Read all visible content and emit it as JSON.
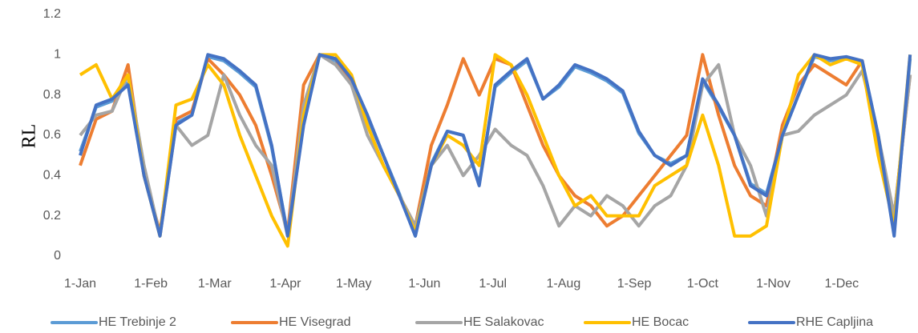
{
  "chart_data": {
    "type": "line",
    "y_label": "RL",
    "x": [
      0,
      7,
      14,
      21,
      28,
      35,
      42,
      49,
      56,
      63,
      70,
      77,
      84,
      91,
      98,
      105,
      112,
      119,
      126,
      133,
      140,
      147,
      154,
      161,
      168,
      175,
      182,
      189,
      196,
      203,
      210,
      217,
      224,
      231,
      238,
      245,
      252,
      259,
      266,
      273,
      280,
      287,
      294,
      301,
      308,
      315,
      322,
      329,
      336,
      343,
      350,
      357,
      364
    ],
    "xlim": [
      0,
      365
    ],
    "xticks": [
      {
        "value": 0,
        "label": "1-Jan"
      },
      {
        "value": 31,
        "label": "1-Feb"
      },
      {
        "value": 59,
        "label": "1-Mar"
      },
      {
        "value": 90,
        "label": "1-Apr"
      },
      {
        "value": 120,
        "label": "1-May"
      },
      {
        "value": 151,
        "label": "1-Jun"
      },
      {
        "value": 181,
        "label": "1-Jul"
      },
      {
        "value": 212,
        "label": "1-Aug"
      },
      {
        "value": 243,
        "label": "1-Sep"
      },
      {
        "value": 273,
        "label": "1-Oct"
      },
      {
        "value": 304,
        "label": "1-Nov"
      },
      {
        "value": 334,
        "label": "1-Dec"
      }
    ],
    "ylim": [
      0,
      1.2
    ],
    "yticks": [
      0,
      0.2,
      0.4,
      0.6,
      0.8,
      1,
      1.2
    ],
    "grid": false,
    "legend": "bottom",
    "series": [
      {
        "name": "HE Trebinje 2",
        "color": "#5b9bd5",
        "values": [
          0.52,
          0.74,
          0.77,
          0.86,
          0.42,
          0.11,
          0.66,
          0.7,
          0.99,
          0.97,
          0.91,
          0.84,
          0.54,
          0.11,
          0.66,
          1.0,
          0.97,
          0.87,
          0.69,
          0.5,
          0.31,
          0.1,
          0.46,
          0.62,
          0.6,
          0.36,
          0.84,
          0.91,
          0.97,
          0.78,
          0.84,
          0.94,
          0.91,
          0.87,
          0.81,
          0.61,
          0.5,
          0.46,
          0.5,
          0.87,
          0.74,
          0.6,
          0.36,
          0.31,
          0.6,
          0.8,
          0.99,
          0.97,
          0.98,
          0.96,
          0.6,
          0.12,
          0.98
        ]
      },
      {
        "name": "HE Visegrad",
        "color": "#ed7d31",
        "values": [
          0.45,
          0.68,
          0.72,
          0.95,
          0.4,
          0.12,
          0.68,
          0.72,
          0.98,
          0.9,
          0.8,
          0.65,
          0.4,
          0.12,
          0.85,
          1.0,
          0.98,
          0.85,
          0.65,
          0.45,
          0.3,
          0.15,
          0.55,
          0.75,
          0.98,
          0.8,
          0.98,
          0.95,
          0.75,
          0.55,
          0.4,
          0.3,
          0.25,
          0.15,
          0.2,
          0.3,
          0.4,
          0.5,
          0.6,
          1.0,
          0.7,
          0.45,
          0.3,
          0.25,
          0.65,
          0.85,
          0.95,
          0.9,
          0.85,
          0.97,
          0.55,
          0.2,
          0.9
        ]
      },
      {
        "name": "HE Salakovac",
        "color": "#a5a5a5",
        "values": [
          0.6,
          0.7,
          0.72,
          0.9,
          0.45,
          0.1,
          0.65,
          0.55,
          0.6,
          0.9,
          0.7,
          0.55,
          0.45,
          0.1,
          0.75,
          1.0,
          0.95,
          0.85,
          0.6,
          0.45,
          0.3,
          0.15,
          0.45,
          0.55,
          0.4,
          0.5,
          0.63,
          0.55,
          0.5,
          0.35,
          0.15,
          0.25,
          0.2,
          0.3,
          0.25,
          0.15,
          0.25,
          0.3,
          0.45,
          0.85,
          0.95,
          0.6,
          0.45,
          0.2,
          0.6,
          0.62,
          0.7,
          0.75,
          0.8,
          0.92,
          0.6,
          0.2,
          0.9
        ]
      },
      {
        "name": "HE Bocac",
        "color": "#ffc000",
        "values": [
          0.9,
          0.95,
          0.78,
          0.9,
          0.4,
          0.1,
          0.75,
          0.78,
          0.95,
          0.85,
          0.6,
          0.4,
          0.2,
          0.05,
          0.7,
          1.0,
          1.0,
          0.9,
          0.65,
          0.45,
          0.3,
          0.12,
          0.45,
          0.6,
          0.55,
          0.45,
          1.0,
          0.95,
          0.8,
          0.6,
          0.4,
          0.25,
          0.3,
          0.2,
          0.2,
          0.2,
          0.35,
          0.4,
          0.45,
          0.7,
          0.45,
          0.1,
          0.1,
          0.15,
          0.6,
          0.9,
          1.0,
          0.95,
          0.98,
          0.95,
          0.5,
          0.15,
          1.0
        ]
      },
      {
        "name": "RHE Capljina",
        "color": "#4472c4",
        "values": [
          0.5,
          0.75,
          0.78,
          0.85,
          0.4,
          0.1,
          0.65,
          0.7,
          1.0,
          0.98,
          0.92,
          0.85,
          0.55,
          0.1,
          0.65,
          1.0,
          0.98,
          0.88,
          0.7,
          0.5,
          0.3,
          0.1,
          0.45,
          0.62,
          0.6,
          0.35,
          0.85,
          0.92,
          0.98,
          0.78,
          0.85,
          0.95,
          0.92,
          0.88,
          0.82,
          0.62,
          0.5,
          0.45,
          0.5,
          0.88,
          0.75,
          0.6,
          0.35,
          0.3,
          0.6,
          0.8,
          1.0,
          0.98,
          0.99,
          0.97,
          0.6,
          0.1,
          1.0
        ]
      }
    ]
  }
}
